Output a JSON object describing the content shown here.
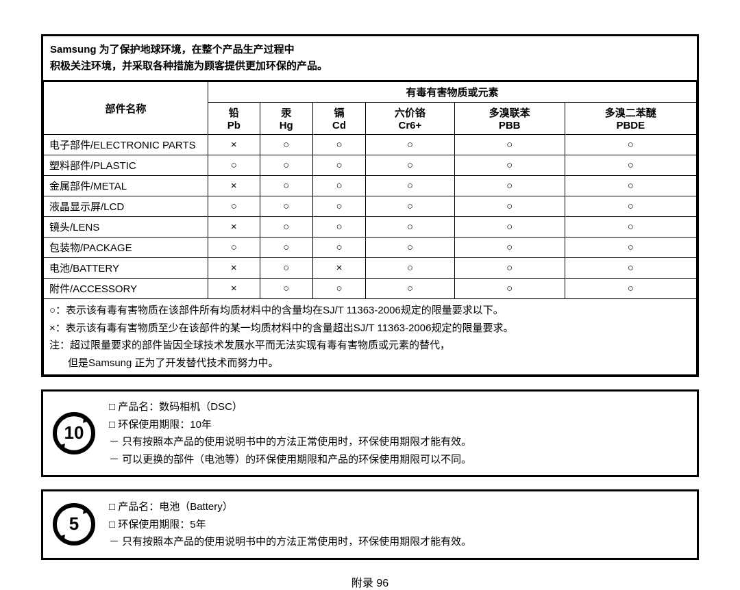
{
  "header": {
    "line1": "Samsung 为了保护地球环境，在整个产品生产过程中",
    "line2": "积极关注环境，并采取各种措施为顾客提供更加环保的产品。"
  },
  "table": {
    "part_header": "部件名称",
    "substances_header": "有毒有害物质或元素",
    "columns": [
      {
        "name_cn": "铅",
        "sym": "Pb"
      },
      {
        "name_cn": "汞",
        "sym": "Hg"
      },
      {
        "name_cn": "镉",
        "sym": "Cd"
      },
      {
        "name_cn": "六价铬",
        "sym": "Cr6+"
      },
      {
        "name_cn": "多溴联苯",
        "sym": "PBB"
      },
      {
        "name_cn": "多溴二苯醚",
        "sym": "PBDE"
      }
    ],
    "rows": [
      {
        "part": "电子部件/ELECTRONIC PARTS",
        "v": [
          "×",
          "○",
          "○",
          "○",
          "○",
          "○"
        ]
      },
      {
        "part": "塑料部件/PLASTIC",
        "v": [
          "○",
          "○",
          "○",
          "○",
          "○",
          "○"
        ]
      },
      {
        "part": "金属部件/METAL",
        "v": [
          "×",
          "○",
          "○",
          "○",
          "○",
          "○"
        ]
      },
      {
        "part": "液晶显示屏/LCD",
        "v": [
          "○",
          "○",
          "○",
          "○",
          "○",
          "○"
        ]
      },
      {
        "part": "镜头/LENS",
        "v": [
          "×",
          "○",
          "○",
          "○",
          "○",
          "○"
        ]
      },
      {
        "part": "包装物/PACKAGE",
        "v": [
          "○",
          "○",
          "○",
          "○",
          "○",
          "○"
        ]
      },
      {
        "part": "电池/BATTERY",
        "v": [
          "×",
          "○",
          "×",
          "○",
          "○",
          "○"
        ]
      },
      {
        "part": "附件/ACCESSORY",
        "v": [
          "×",
          "○",
          "○",
          "○",
          "○",
          "○"
        ]
      }
    ],
    "notes": [
      "○：表示该有毒有害物质在该部件所有均质材料中的含量均在SJ/T 11363-2006规定的限量要求以下。",
      "×：表示该有毒有害物质至少在该部件的某一均质材料中的含量超出SJ/T 11363-2006规定的限量要求。",
      "注：超过限量要求的部件皆因全球技术发展水平而无法实现有毒有害物质或元素的替代，",
      "但是Samsung 正为了开发替代技术而努力中。"
    ]
  },
  "notice1": {
    "icon_number": "10",
    "lines": [
      "□ 产品名：数码相机（DSC）",
      "□ 环保使用期限：10年",
      "－ 只有按照本产品的使用说明书中的方法正常使用时，环保使用期限才能有效。",
      "－ 可以更换的部件（电池等）的环保使用期限和产品的环保使用期限可以不同。"
    ]
  },
  "notice2": {
    "icon_number": "5",
    "lines": [
      "□ 产品名：电池（Battery）",
      "□ 环保使用期限：5年",
      "－ 只有按照本产品的使用说明书中的方法正常使用时，环保使用期限才能有效。"
    ]
  },
  "footer": "附录 96",
  "colors": {
    "text": "#000000",
    "border": "#000000",
    "bg": "#ffffff"
  }
}
